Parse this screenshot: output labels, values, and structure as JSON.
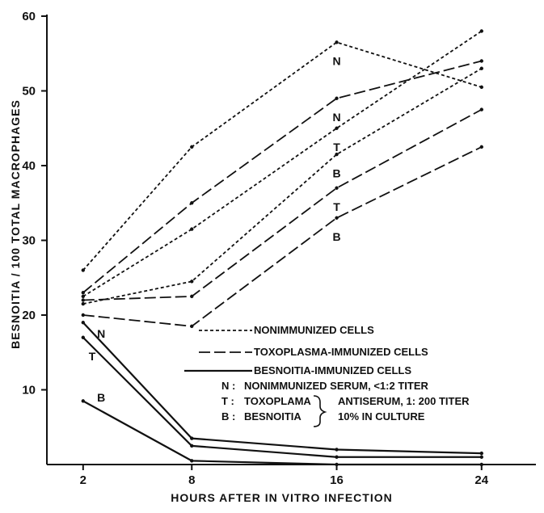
{
  "chart_data": {
    "type": "line",
    "xlabel": "HOURS  AFTER  IN VITRO  INFECTION",
    "ylabel": "BESNOITIA  /  100  TOTAL  MACROPHAGES",
    "x": [
      2,
      8,
      16,
      24
    ],
    "xticks": [
      "2",
      "8",
      "16",
      "24"
    ],
    "yticks": [
      "10",
      "20",
      "30",
      "40",
      "50",
      "60"
    ],
    "xlim": [
      0,
      27
    ],
    "ylim": [
      0,
      60
    ],
    "series": [
      {
        "name": "N",
        "group": "NONIMMUNIZED CELLS",
        "style": "dotted",
        "values": [
          26,
          42.5,
          56.5,
          50.5
        ]
      },
      {
        "name": "T",
        "group": "NONIMMUNIZED CELLS",
        "style": "dotted",
        "values": [
          22.5,
          31.5,
          45,
          58
        ]
      },
      {
        "name": "B",
        "group": "NONIMMUNIZED CELLS",
        "style": "dotted",
        "values": [
          21.5,
          24.5,
          41.5,
          53
        ]
      },
      {
        "name": "N",
        "group": "TOXOPLASMA-IMMUNIZED CELLS",
        "style": "dashed",
        "values": [
          23,
          35,
          49,
          54
        ]
      },
      {
        "name": "T",
        "group": "TOXOPLASMA-IMMUNIZED CELLS",
        "style": "dashed",
        "values": [
          22,
          22.5,
          37,
          47.5
        ]
      },
      {
        "name": "B",
        "group": "TOXOPLASMA-IMMUNIZED CELLS",
        "style": "dashed",
        "values": [
          20,
          18.5,
          33,
          42.5
        ]
      },
      {
        "name": "N",
        "group": "BESNOITIA-IMMUNIZED CELLS",
        "style": "solid",
        "values": [
          19,
          3.5,
          2,
          1.5
        ]
      },
      {
        "name": "T",
        "group": "BESNOITIA-IMMUNIZED CELLS",
        "style": "solid",
        "values": [
          17,
          2.5,
          1,
          1
        ]
      },
      {
        "name": "B",
        "group": "BESNOITIA-IMMUNIZED CELLS",
        "style": "solid",
        "values": [
          8.5,
          0.5,
          0,
          0
        ]
      }
    ],
    "point_labels": [
      {
        "text": "N",
        "x": 16,
        "y": 54
      },
      {
        "text": "N",
        "x": 16,
        "y": 46.5
      },
      {
        "text": "T",
        "x": 16,
        "y": 42.5
      },
      {
        "text": "B",
        "x": 16,
        "y": 39
      },
      {
        "text": "T",
        "x": 16,
        "y": 34.5
      },
      {
        "text": "B",
        "x": 16,
        "y": 30.5
      },
      {
        "text": "N",
        "x": 3,
        "y": 17.5
      },
      {
        "text": "T",
        "x": 2.5,
        "y": 14.5
      },
      {
        "text": "B",
        "x": 3,
        "y": 9
      }
    ],
    "legend": {
      "placement": "lower-right",
      "entries": [
        {
          "style": "dotted",
          "text": "NONIMMUNIZED CELLS"
        },
        {
          "style": "dashed",
          "text": "TOXOPLASMA-IMMUNIZED CELLS"
        },
        {
          "style": "solid",
          "text": "BESNOITIA-IMMUNIZED CELLS"
        }
      ],
      "notes": [
        {
          "key": "N :",
          "text": "NONIMMUNIZED SERUM, <1:2  TITER"
        },
        {
          "key": "T :",
          "text": "TOXOPLAMA",
          "text2": "ANTISERUM, 1: 200  TITER"
        },
        {
          "key": "B :",
          "text": "BESNOITIA",
          "text2": "10%  IN CULTURE"
        }
      ]
    },
    "grid": false
  }
}
